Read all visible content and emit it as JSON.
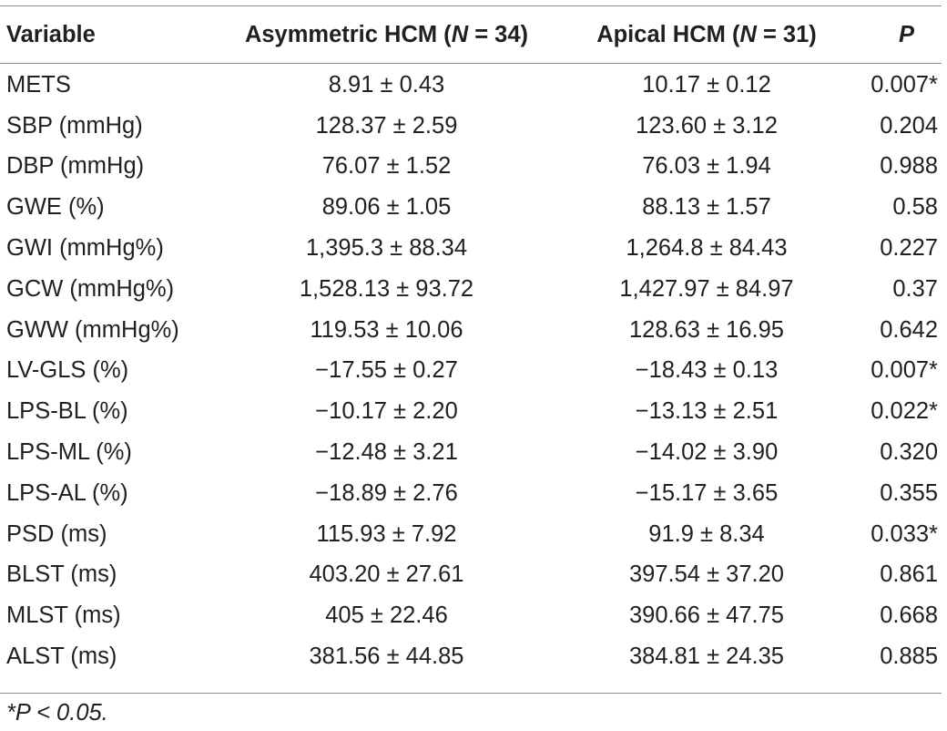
{
  "table": {
    "headers": {
      "variable": "Variable",
      "asymmetric_prefix": "Asymmetric HCM (",
      "asymmetric_n_var": "N",
      "asymmetric_n_rest": " = 34)",
      "apical_prefix": "Apical HCM (",
      "apical_n_var": "N",
      "apical_n_rest": " = 31)",
      "p": "P"
    },
    "rows": [
      {
        "variable": "METS",
        "asymmetric": "8.91 ± 0.43",
        "apical": "10.17 ± 0.12",
        "p": "0.007*"
      },
      {
        "variable": "SBP (mmHg)",
        "asymmetric": "128.37 ± 2.59",
        "apical": "123.60 ± 3.12",
        "p": "0.204"
      },
      {
        "variable": "DBP (mmHg)",
        "asymmetric": "76.07 ± 1.52",
        "apical": "76.03 ± 1.94",
        "p": "0.988"
      },
      {
        "variable": "GWE (%)",
        "asymmetric": "89.06 ± 1.05",
        "apical": "88.13 ± 1.57",
        "p": "0.58"
      },
      {
        "variable": "GWI (mmHg%)",
        "asymmetric": "1,395.3 ± 88.34",
        "apical": "1,264.8 ± 84.43",
        "p": "0.227"
      },
      {
        "variable": "GCW (mmHg%)",
        "asymmetric": "1,528.13 ± 93.72",
        "apical": "1,427.97 ± 84.97",
        "p": "0.37"
      },
      {
        "variable": "GWW (mmHg%)",
        "asymmetric": "119.53 ± 10.06",
        "apical": "128.63 ± 16.95",
        "p": "0.642"
      },
      {
        "variable": "LV-GLS (%)",
        "asymmetric": "−17.55 ± 0.27",
        "apical": "−18.43 ± 0.13",
        "p": "0.007*"
      },
      {
        "variable": "LPS-BL (%)",
        "asymmetric": "−10.17 ± 2.20",
        "apical": "−13.13 ± 2.51",
        "p": "0.022*"
      },
      {
        "variable": "LPS-ML (%)",
        "asymmetric": "−12.48 ± 3.21",
        "apical": "−14.02 ± 3.90",
        "p": "0.320"
      },
      {
        "variable": "LPS-AL (%)",
        "asymmetric": "−18.89 ± 2.76",
        "apical": "−15.17 ± 3.65",
        "p": "0.355"
      },
      {
        "variable": "PSD (ms)",
        "asymmetric": "115.93 ± 7.92",
        "apical": "91.9 ± 8.34",
        "p": "0.033*"
      },
      {
        "variable": "BLST (ms)",
        "asymmetric": "403.20 ± 27.61",
        "apical": "397.54 ± 37.20",
        "p": "0.861"
      },
      {
        "variable": "MLST (ms)",
        "asymmetric": "405 ± 22.46",
        "apical": "390.66 ± 47.75",
        "p": "0.668"
      },
      {
        "variable": "ALST (ms)",
        "asymmetric": "381.56 ± 44.85",
        "apical": "384.81 ± 24.35",
        "p": "0.885"
      }
    ]
  },
  "footnote": "*P < 0.05.",
  "colors": {
    "text": "#231f20",
    "rule": "#8c8c8c",
    "background": "#ffffff"
  }
}
